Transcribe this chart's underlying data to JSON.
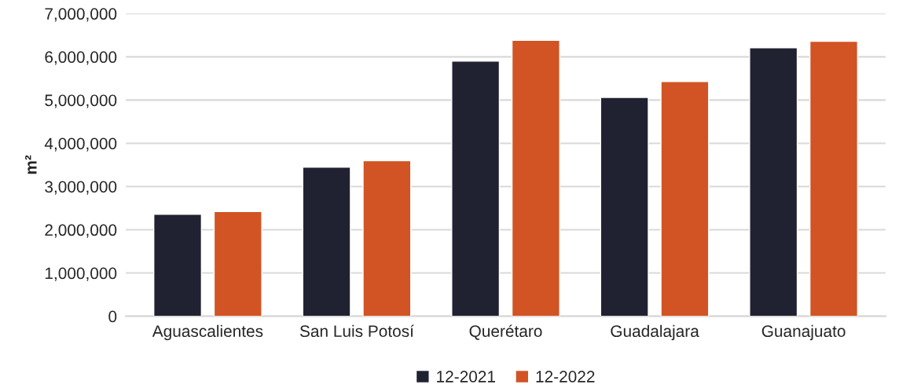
{
  "chart_data": {
    "type": "bar",
    "ylabel": "m²",
    "categories": [
      "Aguascalientes",
      "San Luis Potosí",
      "Querétaro",
      "Guadalajara",
      "Guanajuato"
    ],
    "series": [
      {
        "name": "12-2021",
        "color": "#202231",
        "values": [
          2360000,
          3450000,
          5900000,
          5060000,
          6210000
        ]
      },
      {
        "name": "12-2022",
        "color": "#d25323",
        "values": [
          2420000,
          3600000,
          6380000,
          5430000,
          6360000
        ]
      }
    ],
    "ylim": [
      0,
      7000000
    ],
    "yticks": [
      {
        "value": 0,
        "label": "0"
      },
      {
        "value": 1000000,
        "label": "1,000,000"
      },
      {
        "value": 2000000,
        "label": "2,000,000"
      },
      {
        "value": 3000000,
        "label": "3,000,000"
      },
      {
        "value": 4000000,
        "label": "4,000,000"
      },
      {
        "value": 5000000,
        "label": "5,000,000"
      },
      {
        "value": 6000000,
        "label": "6,000,000"
      },
      {
        "value": 7000000,
        "label": "7,000,000"
      }
    ],
    "grid": "y",
    "legend": "bottom"
  }
}
